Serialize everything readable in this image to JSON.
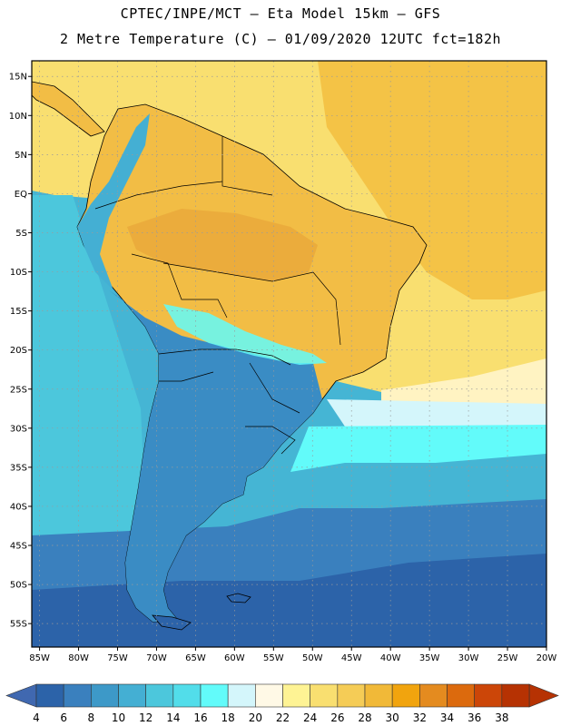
{
  "header": {
    "line1": "CPTEC/INPE/MCT –  Eta Model 15km – GFS",
    "line2": "2 Metre Temperature (C) – 01/09/2020 12UTC fct=182h"
  },
  "map": {
    "lon_range": [
      -86,
      -20
    ],
    "lat_range": [
      -58,
      17
    ],
    "lat_ticks": [
      "15N",
      "10N",
      "5N",
      "EQ",
      "5S",
      "10S",
      "15S",
      "20S",
      "25S",
      "30S",
      "35S",
      "40S",
      "45S",
      "50S",
      "55S"
    ],
    "lat_values": [
      15,
      10,
      5,
      0,
      -5,
      -10,
      -15,
      -20,
      -25,
      -30,
      -35,
      -40,
      -45,
      -50,
      -55
    ],
    "lon_ticks": [
      "85W",
      "80W",
      "75W",
      "70W",
      "65W",
      "60W",
      "55W",
      "50W",
      "45W",
      "40W",
      "35W",
      "30W",
      "25W",
      "20W"
    ],
    "lon_values": [
      -85,
      -80,
      -75,
      -70,
      -65,
      -60,
      -55,
      -50,
      -45,
      -40,
      -35,
      -30,
      -25,
      -20
    ],
    "ocean_color": "#45b5d4",
    "warm_ocean_color": "#f9df70",
    "land_warm_color": "#f2bd45",
    "land_cold_color": "#3a8cc4"
  },
  "colorbar": {
    "labels": [
      "4",
      "6",
      "8",
      "10",
      "12",
      "14",
      "16",
      "18",
      "20",
      "22",
      "24",
      "26",
      "28",
      "30",
      "32",
      "34",
      "36",
      "38"
    ],
    "colors": [
      "#2c63a9",
      "#3a80be",
      "#3d99c8",
      "#44afd3",
      "#4cc7dc",
      "#52ddea",
      "#62fbfa",
      "#d4f6fb",
      "#fff9e6",
      "#fef394",
      "#f9df70",
      "#f5cc56",
      "#f1b938",
      "#f1a40e",
      "#e48b1f",
      "#dc6a0d",
      "#cc4608",
      "#b63203"
    ],
    "low_arrow_color": "#4068b0",
    "high_arrow_color": "#b63203"
  }
}
